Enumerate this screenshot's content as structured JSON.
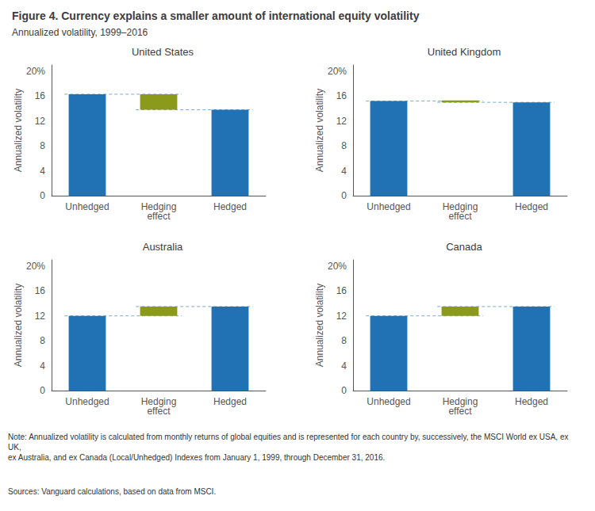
{
  "title": "Figure 4. Currency explains a smaller amount of international equity volatility",
  "subtitle": "Annualized volatility, 1999–2016",
  "notes": [
    "Note: Annualized volatility is calculated from monthly returns of global equities and is represented for each country by, successively, the MSCI World ex USA, ex UK,\nex Australia, and ex Canada (Local/Unhedged) Indexes from January 1, 1999, through December 31, 2016.",
    "Sources: Vanguard calculations, based on data from MSCI."
  ],
  "chart_data": [
    {
      "type": "bar",
      "title": "United States",
      "categories": [
        "Unhedged",
        "Hedging\neffect",
        "Hedged"
      ],
      "values": [
        16.3,
        16.3,
        13.8
      ],
      "bottoms": [
        0,
        13.8,
        0
      ],
      "colors": [
        "#2171b5",
        "#8b9a1a",
        "#2171b5"
      ],
      "ylabel": "Annualized volatility",
      "ylim": [
        0,
        21
      ],
      "yticks": [
        0,
        4,
        8,
        12,
        16,
        {
          "value": 20,
          "label": "20%"
        }
      ],
      "grid": false
    },
    {
      "type": "bar",
      "title": "United Kingdom",
      "categories": [
        "Unhedged",
        "Hedging\neffect",
        "Hedged"
      ],
      "values": [
        15.2,
        15.3,
        15.0
      ],
      "bottoms": [
        0,
        15.0,
        0
      ],
      "colors": [
        "#2171b5",
        "#8b9a1a",
        "#2171b5"
      ],
      "ylabel": "Annualized volatility",
      "ylim": [
        0,
        21
      ],
      "yticks": [
        0,
        4,
        8,
        12,
        16,
        {
          "value": 20,
          "label": "20%"
        }
      ],
      "grid": false
    },
    {
      "type": "bar",
      "title": "Australia",
      "categories": [
        "Unhedged",
        "Hedging\neffect",
        "Hedged"
      ],
      "values": [
        12.0,
        13.5,
        13.5
      ],
      "bottoms": [
        0,
        12.0,
        0
      ],
      "colors": [
        "#2171b5",
        "#8b9a1a",
        "#2171b5"
      ],
      "ylabel": "Annualized volatility",
      "ylim": [
        0,
        21
      ],
      "yticks": [
        0,
        4,
        8,
        12,
        16,
        {
          "value": 20,
          "label": "20%"
        }
      ],
      "grid": false
    },
    {
      "type": "bar",
      "title": "Canada",
      "categories": [
        "Unhedged",
        "Hedging\neffect",
        "Hedged"
      ],
      "values": [
        12.0,
        13.5,
        13.5
      ],
      "bottoms": [
        0,
        12.0,
        0
      ],
      "colors": [
        "#2171b5",
        "#8b9a1a",
        "#2171b5"
      ],
      "ylabel": "Annualized volatility",
      "ylim": [
        0,
        21
      ],
      "yticks": [
        0,
        4,
        8,
        12,
        16,
        {
          "value": 20,
          "label": "20%"
        }
      ],
      "grid": false
    }
  ]
}
